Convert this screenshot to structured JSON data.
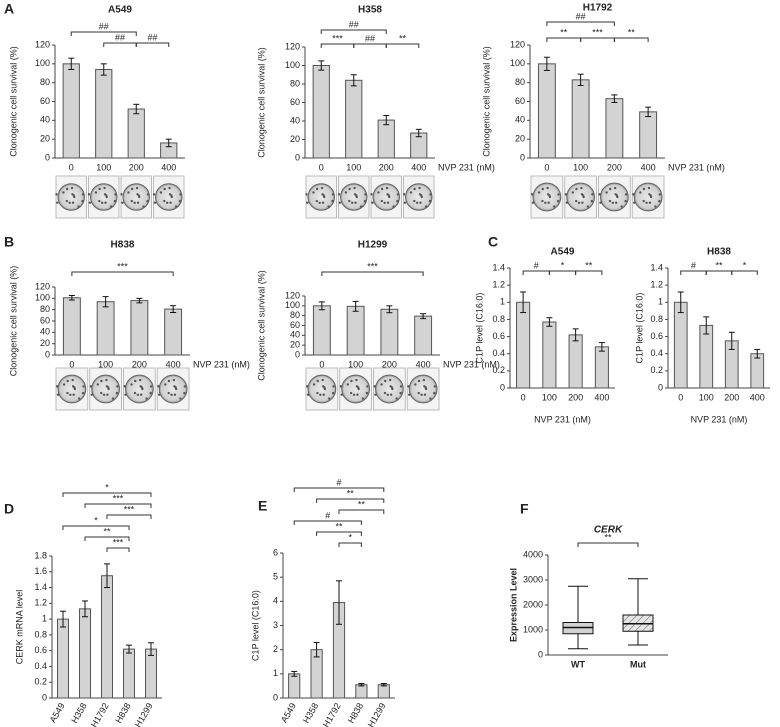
{
  "panel_labels": [
    "A",
    "B",
    "C",
    "D",
    "E",
    "F"
  ],
  "chart_data": [
    {
      "type": "bar",
      "title": "A549",
      "y_label": "Clonogenic cell survival (%)",
      "categories": [
        "0",
        "100",
        "200",
        "400"
      ],
      "values": [
        100,
        94,
        52,
        16
      ],
      "errors": [
        6,
        6,
        5,
        4
      ],
      "ylim": [
        0,
        120
      ],
      "yticks": [
        0,
        20,
        40,
        60,
        80,
        100,
        120
      ],
      "color": "#d3d3d3",
      "annotations": [
        {
          "from": 1,
          "to": 2,
          "label": "##"
        },
        {
          "from": 2,
          "to": 3,
          "label": "##"
        },
        {
          "from": 0,
          "to": 2,
          "label": "##"
        }
      ]
    },
    {
      "type": "bar",
      "title": "H358",
      "y_label": "Clonogenic cell survival (%)",
      "x_label": "NVP 231 (nM)",
      "categories": [
        "0",
        "100",
        "200",
        "400"
      ],
      "values": [
        100,
        84,
        41,
        27
      ],
      "errors": [
        5,
        6,
        5,
        4
      ],
      "ylim": [
        0,
        120
      ],
      "yticks": [
        0,
        20,
        40,
        60,
        80,
        100,
        120
      ],
      "color": "#d3d3d3",
      "annotations": [
        {
          "from": 0,
          "to": 1,
          "label": "***"
        },
        {
          "from": 1,
          "to": 2,
          "label": "##"
        },
        {
          "from": 2,
          "to": 3,
          "label": "**"
        },
        {
          "from": 0,
          "to": 2,
          "label": "##"
        }
      ]
    },
    {
      "type": "bar",
      "title": "H1792",
      "y_label": "Clonogenic cell survival (%)",
      "x_label": "NVP 231 (nM)",
      "categories": [
        "0",
        "100",
        "200",
        "400"
      ],
      "values": [
        100,
        83,
        63,
        49
      ],
      "errors": [
        7,
        6,
        4,
        5
      ],
      "ylim": [
        0,
        120
      ],
      "yticks": [
        0,
        20,
        40,
        60,
        80,
        100,
        120
      ],
      "color": "#d3d3d3",
      "annotations": [
        {
          "from": 0,
          "to": 1,
          "label": "**"
        },
        {
          "from": 1,
          "to": 2,
          "label": "***"
        },
        {
          "from": 2,
          "to": 3,
          "label": "**"
        },
        {
          "from": 0,
          "to": 2,
          "label": "##"
        }
      ]
    },
    {
      "type": "bar",
      "title": "H838",
      "y_label": "Clonogenic cell survival (%)",
      "x_label": "NVP 231 (nM)",
      "categories": [
        "0",
        "100",
        "200",
        "400"
      ],
      "values": [
        101,
        94,
        96,
        81
      ],
      "errors": [
        4,
        9,
        4,
        6
      ],
      "ylim": [
        0,
        120
      ],
      "yticks": [
        0,
        20,
        40,
        60,
        80,
        100,
        120
      ],
      "color": "#d3d3d3",
      "annotations": [
        {
          "from": 0,
          "to": 3,
          "label": "***"
        }
      ]
    },
    {
      "type": "bar",
      "title": "H1299",
      "y_label": "Clonogenic cell survival (%)",
      "x_label": "NVP 231 (nM)",
      "categories": [
        "0",
        "100",
        "200",
        "400"
      ],
      "values": [
        100,
        99,
        93,
        79
      ],
      "errors": [
        8,
        10,
        7,
        5
      ],
      "ylim": [
        0,
        120
      ],
      "yticks": [
        0,
        20,
        40,
        60,
        80,
        100,
        120
      ],
      "color": "#d3d3d3",
      "annotations": [
        {
          "from": 0,
          "to": 3,
          "label": "***"
        }
      ]
    },
    {
      "type": "bar",
      "title": "A549",
      "y_label": "C1P level (C16:0)",
      "x_label": "NVP 231 (nM)",
      "categories": [
        "0",
        "100",
        "200",
        "400"
      ],
      "values": [
        1.0,
        0.77,
        0.62,
        0.48
      ],
      "errors": [
        0.12,
        0.05,
        0.07,
        0.05
      ],
      "ylim": [
        0,
        1.4
      ],
      "yticks": [
        0,
        0.2,
        0.4,
        0.6,
        0.8,
        1,
        1.2,
        1.4
      ],
      "color": "#d3d3d3",
      "annotations": [
        {
          "from": 0,
          "to": 1,
          "label": "#"
        },
        {
          "from": 1,
          "to": 2,
          "label": "*"
        },
        {
          "from": 2,
          "to": 3,
          "label": "**"
        }
      ]
    },
    {
      "type": "bar",
      "title": "H838",
      "y_label": "C1P level (C16:0)",
      "x_label": "NVP 231 (nM)",
      "categories": [
        "0",
        "100",
        "200",
        "400"
      ],
      "values": [
        1.0,
        0.73,
        0.55,
        0.4
      ],
      "errors": [
        0.12,
        0.1,
        0.1,
        0.05
      ],
      "ylim": [
        0,
        1.4
      ],
      "yticks": [
        0,
        0.2,
        0.4,
        0.6,
        0.8,
        1,
        1.2,
        1.4
      ],
      "color": "#d3d3d3",
      "annotations": [
        {
          "from": 0,
          "to": 1,
          "label": "#"
        },
        {
          "from": 1,
          "to": 2,
          "label": "**"
        },
        {
          "from": 2,
          "to": 3,
          "label": "*"
        }
      ]
    },
    {
      "type": "bar",
      "y_label": "CERK mRNA level",
      "categories": [
        "A549",
        "H358",
        "H1792",
        "H838",
        "H1299"
      ],
      "values": [
        1.0,
        1.13,
        1.55,
        0.62,
        0.62
      ],
      "errors": [
        0.1,
        0.1,
        0.15,
        0.05,
        0.08
      ],
      "ylim": [
        0,
        1.8
      ],
      "yticks": [
        0,
        0.2,
        0.4,
        0.6,
        0.8,
        1,
        1.2,
        1.4,
        1.6,
        1.8
      ],
      "color": "#d3d3d3",
      "annotations": [
        {
          "from": 2,
          "to": 3,
          "label": "***"
        },
        {
          "from": 1,
          "to": 3,
          "label": "**"
        },
        {
          "from": 0,
          "to": 3,
          "label": "*"
        },
        {
          "from": 2,
          "to": 4,
          "label": "***"
        },
        {
          "from": 1,
          "to": 4,
          "label": "***"
        },
        {
          "from": 0,
          "to": 4,
          "label": "*"
        }
      ]
    },
    {
      "type": "bar",
      "y_label": "C1P level (C16:0)",
      "categories": [
        "A549",
        "H358",
        "H1792",
        "H838",
        "H1299"
      ],
      "values": [
        1.0,
        2.0,
        3.95,
        0.55,
        0.55
      ],
      "errors": [
        0.1,
        0.3,
        0.9,
        0.05,
        0.05
      ],
      "ylim": [
        0,
        6
      ],
      "yticks": [
        0,
        1,
        2,
        3,
        4,
        5,
        6
      ],
      "color": "#d3d3d3",
      "annotations": [
        {
          "from": 2,
          "to": 3,
          "label": "*"
        },
        {
          "from": 1,
          "to": 3,
          "label": "**"
        },
        {
          "from": 0,
          "to": 3,
          "label": "#"
        },
        {
          "from": 2,
          "to": 4,
          "label": "**"
        },
        {
          "from": 1,
          "to": 4,
          "label": "**"
        },
        {
          "from": 0,
          "to": 4,
          "label": "#"
        }
      ]
    },
    {
      "type": "box",
      "title": "CERK",
      "y_label": "Expression Level",
      "categories": [
        "WT",
        "Mut"
      ],
      "boxes": [
        {
          "min": 250,
          "q1": 850,
          "median": 1100,
          "q3": 1300,
          "max": 2750
        },
        {
          "min": 400,
          "q1": 950,
          "median": 1250,
          "q3": 1600,
          "max": 3050
        }
      ],
      "hatched": [
        false,
        true
      ],
      "ylim": [
        0,
        4000
      ],
      "yticks": [
        0,
        1000,
        2000,
        3000,
        4000
      ],
      "color": "#d3d3d3",
      "annotations": [
        {
          "from": 0,
          "to": 1,
          "label": "**"
        }
      ]
    }
  ]
}
